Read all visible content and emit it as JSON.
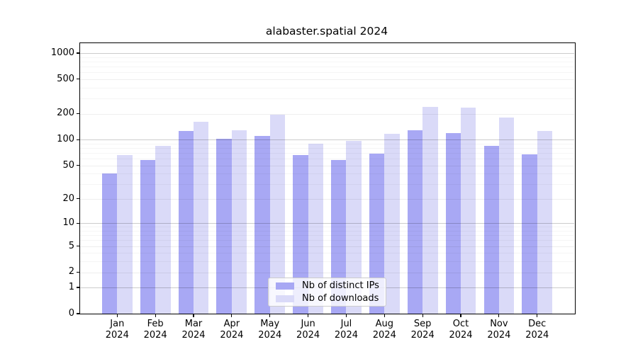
{
  "title": "alabaster.spatial 2024",
  "colors": {
    "background": "#ffffff",
    "axis": "#000000",
    "grid_major": "#cccccc",
    "grid_minor": "#ededed",
    "series_distinct_ips": "#a8a8f4",
    "series_downloads": "#dadaf8"
  },
  "chart_data": {
    "type": "bar",
    "title": "alabaster.spatial 2024",
    "y_scale": "log10(value+1)",
    "grid": "horizontal",
    "legend_position": "lower-center-inside",
    "categories": [
      "Jan\n2024",
      "Feb\n2024",
      "Mar\n2024",
      "Apr\n2024",
      "May\n2024",
      "Jun\n2024",
      "Jul\n2024",
      "Aug\n2024",
      "Sep\n2024",
      "Oct\n2024",
      "Nov\n2024",
      "Dec\n2024"
    ],
    "y_ticks": [
      0,
      1,
      2,
      5,
      10,
      20,
      50,
      100,
      200,
      500,
      1000
    ],
    "ylim": [
      0,
      1300
    ],
    "series": [
      {
        "name": "Nb of distinct IPs",
        "color": "#a8a8f4",
        "values": [
          40,
          58,
          126,
          102,
          110,
          66,
          58,
          68,
          128,
          118,
          84,
          67
        ]
      },
      {
        "name": "Nb of downloads",
        "color": "#dadaf8",
        "values": [
          66,
          85,
          160,
          129,
          195,
          89,
          96,
          116,
          241,
          233,
          181,
          127
        ]
      }
    ]
  }
}
